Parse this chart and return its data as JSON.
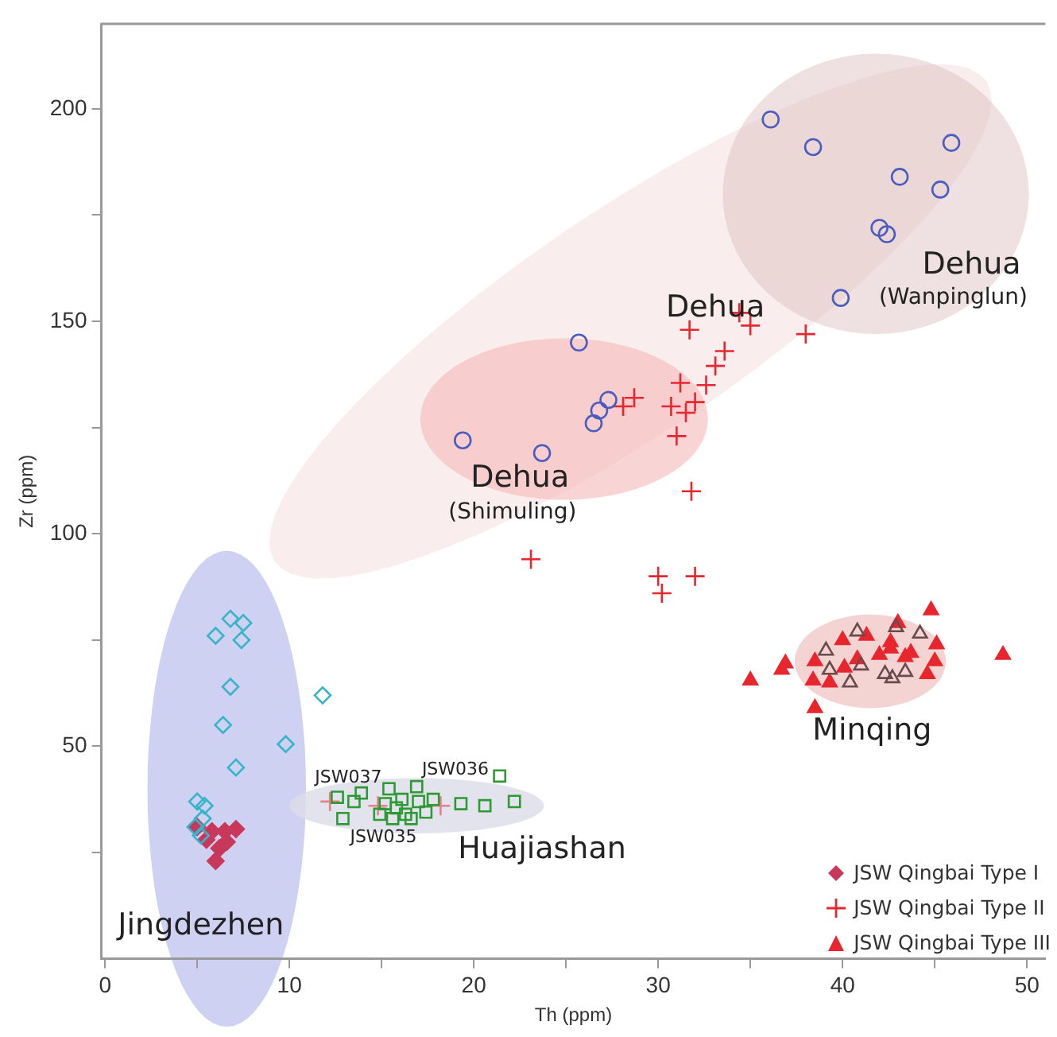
{
  "chart_data": {
    "type": "scatter",
    "xlabel": "Th (ppm)",
    "ylabel": "Zr (ppm)",
    "xlim": [
      -0.2,
      51
    ],
    "ylim": [
      0,
      220
    ],
    "xticks": [
      0,
      {
        "value": 5,
        "label": null
      },
      10,
      {
        "value": 15,
        "label": null
      },
      20,
      {
        "value": 25,
        "label": null
      },
      30,
      {
        "value": 35,
        "label": null
      },
      40,
      {
        "value": 45,
        "label": null
      },
      50
    ],
    "yticks": [
      {
        "value": 25,
        "label": null
      },
      50,
      {
        "value": 75,
        "label": null
      },
      100,
      {
        "value": 125,
        "label": null
      },
      150,
      {
        "value": 175,
        "label": null
      },
      200
    ],
    "grid": false,
    "legend": "bottom right",
    "series": [
      {
        "color": "#36b4c8",
        "marker": "diamond",
        "x": [
          6.8,
          7.5,
          6.0,
          7.4,
          6.8,
          11.8,
          6.4,
          9.8,
          7.1,
          5.0,
          5.4,
          5.3,
          4.9,
          5.2
        ],
        "values": [
          80,
          79,
          76,
          75,
          64,
          62,
          55,
          50.5,
          45,
          37,
          36,
          33,
          31,
          29
        ]
      },
      {
        "name": "JSW Qingbai Type I",
        "color": "#c8385a",
        "marker": "diamond",
        "x": [
          5.0,
          5.8,
          6.5,
          7.1,
          6.6,
          6.2,
          6.0,
          5.5
        ],
        "values": [
          31,
          30,
          30,
          30.5,
          27.5,
          26,
          23,
          28
        ]
      },
      {
        "name": "JSW Qingbai Type II",
        "color": "#e8262e",
        "marker": "cross",
        "x": [
          31.7,
          34.4,
          35.0,
          38.0,
          33.6,
          33.1,
          32.6,
          31.2,
          32.0,
          31.5,
          30.7,
          28.7,
          28.1,
          31.0,
          31.8,
          23.1,
          30.0,
          30.2,
          32.0
        ],
        "values": [
          148,
          152,
          149,
          147,
          143,
          139.5,
          135,
          135.5,
          131,
          128.5,
          130,
          132,
          130,
          123,
          110,
          94,
          90,
          86,
          90
        ]
      },
      {
        "name": "JSW Qingbai Type III",
        "color": "#e8262e",
        "marker": "triangle",
        "x": [
          35.0,
          36.7,
          36.9,
          38.4,
          38.5,
          38.5,
          39.3,
          40.0,
          40.1,
          41.3,
          40.8,
          42.0,
          42.6,
          43.0,
          42.6,
          43.4,
          43.7,
          44.6,
          44.8,
          45.1,
          45.0,
          48.7
        ],
        "values": [
          65.5,
          68,
          69.5,
          65.5,
          70,
          59,
          65,
          75,
          68.5,
          76,
          70.5,
          71.5,
          74.5,
          79,
          73,
          71,
          72,
          67,
          82,
          74,
          70,
          71.5
        ]
      },
      {
        "color": "#6a4a4a",
        "marker": "triangle",
        "x": [
          39.1,
          40.8,
          44.2,
          39.3,
          40.4,
          41.0,
          42.3,
          42.7,
          43.4,
          42.9
        ],
        "values": [
          72.5,
          77,
          76.5,
          68,
          65,
          69,
          67,
          66,
          67.5,
          78
        ]
      },
      {
        "color": "#2e9a36",
        "marker": "square",
        "x": [
          12.6,
          12.9,
          13.5,
          13.9,
          15.4,
          14.9,
          15.2,
          15.6,
          16.1,
          16.3,
          16.6,
          16.9,
          17.0,
          17.4,
          17.8,
          15.8,
          19.3,
          20.6,
          21.4,
          22.2
        ],
        "values": [
          38,
          33,
          37,
          39,
          40,
          34,
          36.5,
          33,
          37.5,
          34,
          33,
          40.5,
          37,
          34.5,
          37.5,
          35.5,
          36.5,
          36,
          43,
          37
        ]
      },
      {
        "color": "#e88088",
        "marker": "cross",
        "x": [
          12.2,
          14.8,
          18.2
        ],
        "values": [
          37,
          36,
          36
        ]
      },
      {
        "color": "#4a5cc0",
        "marker": "circle",
        "x": [
          36.1,
          38.4,
          45.9,
          43.1,
          45.3,
          42.0,
          42.4,
          39.9,
          25.7,
          27.3,
          26.8,
          26.5,
          23.7,
          19.4
        ],
        "values": [
          197.5,
          191,
          192,
          184,
          181,
          172,
          170.5,
          155.5,
          145,
          131.5,
          129,
          126,
          119,
          122
        ]
      }
    ],
    "annotations": [
      "Dehua",
      "(Wanpinglun)",
      "Dehua",
      "Dehua",
      "(Shimuling)",
      "Minqing",
      "Huajiashan",
      "Jingdezhen",
      "JSW037",
      "JSW036",
      "JSW035"
    ]
  }
}
